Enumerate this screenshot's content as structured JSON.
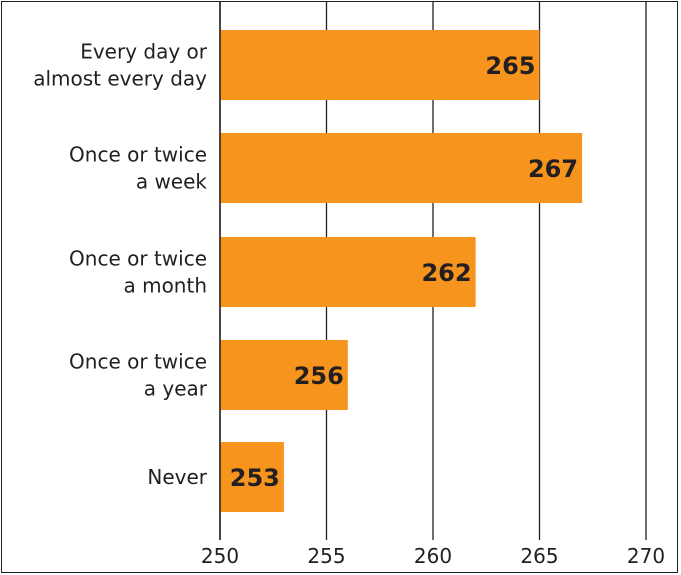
{
  "chart_data": {
    "type": "bar",
    "orientation": "horizontal",
    "categories": [
      [
        "Every day or",
        "almost every day"
      ],
      [
        "Once or twice",
        "a week"
      ],
      [
        "Once or twice",
        "a month"
      ],
      [
        "Once or twice",
        "a year"
      ],
      [
        "Never"
      ]
    ],
    "values": [
      265,
      267,
      262,
      256,
      253
    ],
    "xlim": [
      250,
      270
    ],
    "xticks": [
      "250",
      "255",
      "260",
      "265",
      "270"
    ],
    "data_labels": [
      "265",
      "267",
      "262",
      "256",
      "253"
    ],
    "grid": true,
    "title": "",
    "xlabel": "",
    "ylabel": "",
    "colors": {
      "bar": "#f7941d",
      "grid": "#231f20",
      "text": "#231f20"
    }
  }
}
